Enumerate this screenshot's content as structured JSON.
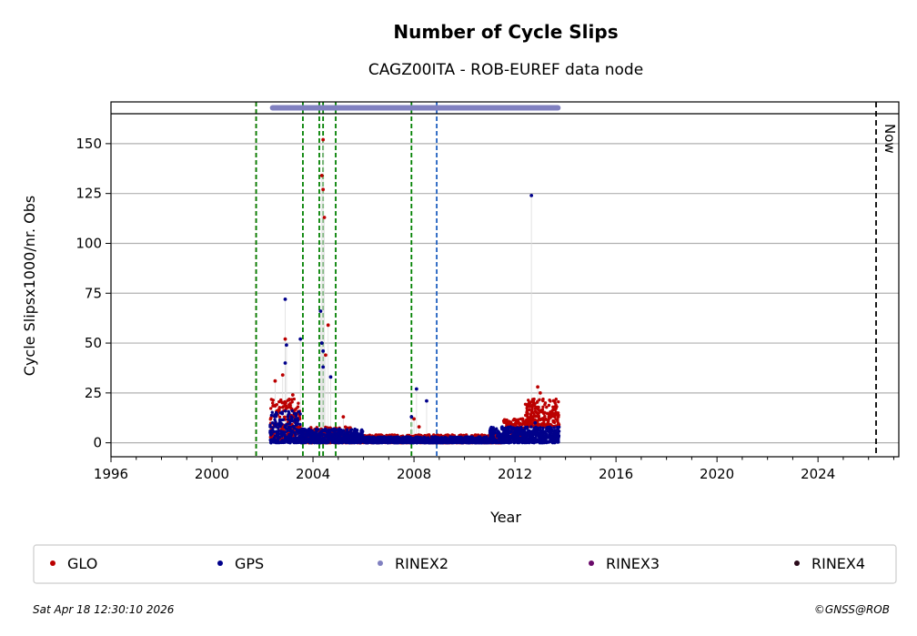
{
  "chart_data": {
    "type": "scatter",
    "title": "Number of Cycle Slips",
    "subtitle": "CAGZ00ITA - ROB-EUREF data node",
    "xlabel": "Year",
    "ylabel": "Cycle Slipsx1000/nr. Obs",
    "xlim": [
      1996,
      2027.2
    ],
    "ylim": [
      -7,
      165
    ],
    "xticks": [
      1996,
      2000,
      2004,
      2008,
      2012,
      2016,
      2020,
      2024
    ],
    "yticks": [
      0,
      25,
      50,
      75,
      100,
      125,
      150
    ],
    "grid_y": true,
    "now_line": {
      "x": 2026.3,
      "label": "Now"
    },
    "event_lines": [
      {
        "x": 2001.75,
        "color": "#cc0000"
      },
      {
        "x": 2001.75,
        "color": "#008000"
      },
      {
        "x": 2003.6,
        "color": "#008000"
      },
      {
        "x": 2004.25,
        "color": "#008000"
      },
      {
        "x": 2004.4,
        "color": "#008000"
      },
      {
        "x": 2004.9,
        "color": "#008000"
      },
      {
        "x": 2007.9,
        "color": "#008000"
      },
      {
        "x": 2008.9,
        "color": "#1f5fbf"
      }
    ],
    "rinex2_bar": {
      "x_start": 2002.4,
      "x_end": 2013.7
    },
    "series": [
      {
        "name": "GLO",
        "color": "#bb0000",
        "outliers": [
          [
            2002.8,
            34
          ],
          [
            2002.9,
            52
          ],
          [
            2002.5,
            31
          ],
          [
            2003.2,
            24
          ],
          [
            2004.4,
            152
          ],
          [
            2004.35,
            134
          ],
          [
            2004.4,
            127
          ],
          [
            2004.45,
            113
          ],
          [
            2004.6,
            59
          ],
          [
            2004.5,
            44
          ],
          [
            2005.2,
            13
          ],
          [
            2008.0,
            12
          ],
          [
            2008.2,
            8
          ],
          [
            2012.3,
            12
          ],
          [
            2012.9,
            28
          ],
          [
            2013.0,
            25
          ]
        ],
        "segments": [
          {
            "x0": 2002.3,
            "x1": 2003.5,
            "lo": 2,
            "hi": 22
          },
          {
            "x0": 2003.5,
            "x1": 2005.5,
            "lo": 0,
            "hi": 8
          },
          {
            "x0": 2005.5,
            "x1": 2011.5,
            "lo": 0,
            "hi": 4
          },
          {
            "x0": 2011.5,
            "x1": 2012.4,
            "lo": 2,
            "hi": 12
          },
          {
            "x0": 2012.4,
            "x1": 2013.75,
            "lo": 8,
            "hi": 22
          }
        ]
      },
      {
        "name": "GPS",
        "color": "#00008b",
        "outliers": [
          [
            2002.9,
            72
          ],
          [
            2002.95,
            49
          ],
          [
            2002.9,
            40
          ],
          [
            2003.5,
            52
          ],
          [
            2004.3,
            66
          ],
          [
            2004.35,
            50
          ],
          [
            2004.4,
            46
          ],
          [
            2004.4,
            38
          ],
          [
            2004.7,
            33
          ],
          [
            2008.1,
            27
          ],
          [
            2008.5,
            21
          ],
          [
            2012.65,
            124
          ],
          [
            2012.8,
            10
          ],
          [
            2007.9,
            13
          ]
        ],
        "segments": [
          {
            "x0": 2002.3,
            "x1": 2003.5,
            "lo": 0,
            "hi": 16
          },
          {
            "x0": 2003.5,
            "x1": 2006.0,
            "lo": 0,
            "hi": 7
          },
          {
            "x0": 2006.0,
            "x1": 2011.0,
            "lo": 0,
            "hi": 3
          },
          {
            "x0": 2011.0,
            "x1": 2013.75,
            "lo": 0,
            "hi": 8
          }
        ]
      },
      {
        "name": "RINEX2",
        "color": "#8080c0",
        "outliers": [],
        "segments": []
      },
      {
        "name": "RINEX3",
        "color": "#6a0a6a",
        "outliers": [],
        "segments": []
      },
      {
        "name": "RINEX4",
        "color": "#2a0a1a",
        "outliers": [],
        "segments": []
      }
    ],
    "legend": [
      "GLO",
      "GPS",
      "RINEX2",
      "RINEX3",
      "RINEX4"
    ],
    "legend_position": "bottom"
  },
  "footer": {
    "timestamp": "Sat Apr 18 12:30:10 2026",
    "credit": "©GNSS@ROB"
  }
}
